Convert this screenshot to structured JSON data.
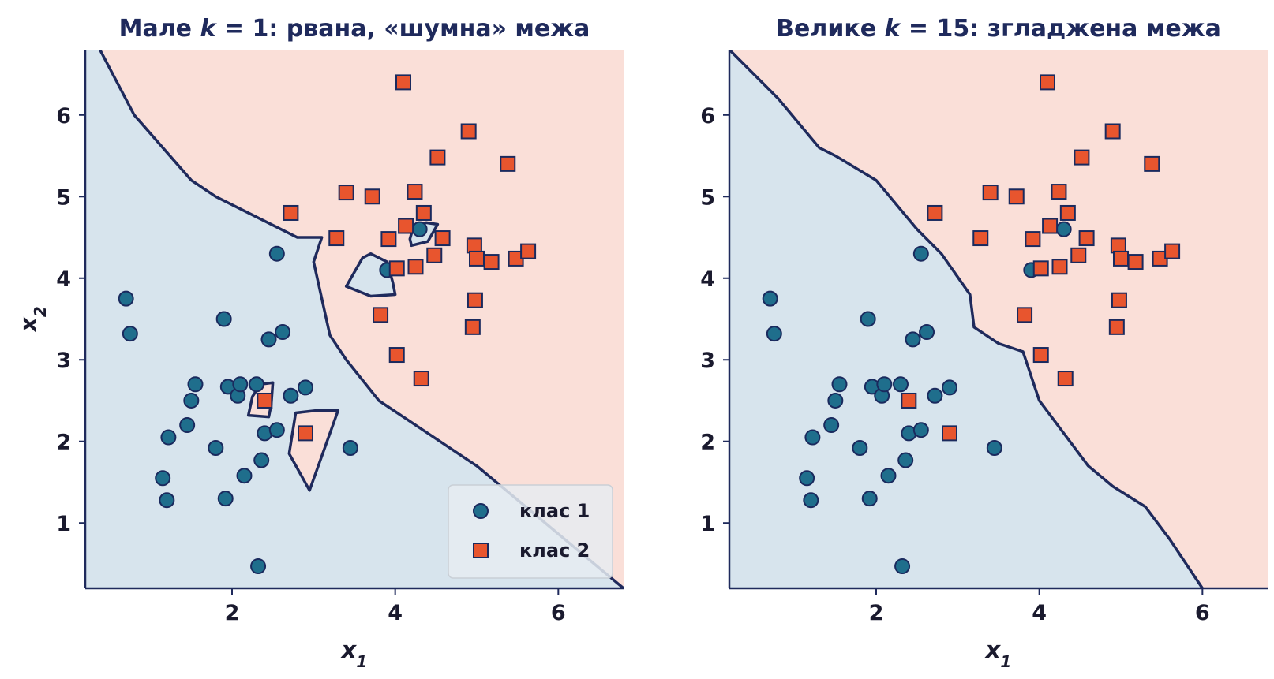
{
  "chart_data": [
    {
      "type": "scatter",
      "title": "Мале k = 1: рвана, «шумна» межа",
      "title_parts": [
        "Мале ",
        "k",
        " = 1: рвана, «шумна» межа"
      ],
      "xlabel": "x1",
      "ylabel": "x2",
      "xlim": [
        0.2,
        6.8
      ],
      "ylim": [
        0.2,
        6.8
      ],
      "xticks": [
        2,
        4,
        6
      ],
      "yticks": [
        1,
        2,
        3,
        4,
        5,
        6
      ],
      "grid": false,
      "legend": {
        "placement": "bottom-right",
        "entries": [
          "клас 1",
          "клас 2"
        ]
      },
      "background_regions": {
        "class1": "#d7e4ed",
        "class2": "#fadfd8"
      },
      "boundary": [
        [
          [
            0.38,
            6.8
          ],
          [
            0.8,
            6.0
          ],
          [
            1.5,
            5.2
          ],
          [
            1.8,
            5.0
          ],
          [
            2.8,
            4.5
          ],
          [
            3.1,
            4.5
          ],
          [
            3.0,
            4.2
          ],
          [
            3.2,
            3.3
          ],
          [
            3.4,
            3.0
          ],
          [
            3.8,
            2.5
          ],
          [
            5.0,
            1.7
          ],
          [
            6.8,
            0.2
          ]
        ],
        [
          [
            3.4,
            3.9
          ],
          [
            3.6,
            4.25
          ],
          [
            3.7,
            4.3
          ],
          [
            3.9,
            4.2
          ],
          [
            3.97,
            3.95
          ],
          [
            4.0,
            3.8
          ],
          [
            3.7,
            3.78
          ],
          [
            3.4,
            3.9
          ]
        ],
        [
          [
            4.18,
            4.48
          ],
          [
            4.22,
            4.62
          ],
          [
            4.38,
            4.68
          ],
          [
            4.52,
            4.66
          ],
          [
            4.4,
            4.45
          ],
          [
            4.2,
            4.4
          ],
          [
            4.18,
            4.48
          ]
        ],
        [
          [
            2.2,
            2.32
          ],
          [
            2.25,
            2.55
          ],
          [
            2.35,
            2.7
          ],
          [
            2.5,
            2.72
          ],
          [
            2.48,
            2.45
          ],
          [
            2.45,
            2.3
          ],
          [
            2.2,
            2.32
          ]
        ],
        [
          [
            2.7,
            1.85
          ],
          [
            2.78,
            2.35
          ],
          [
            3.05,
            2.38
          ],
          [
            3.3,
            2.38
          ],
          [
            2.95,
            1.4
          ],
          [
            2.7,
            1.85
          ]
        ]
      ],
      "series": [
        {
          "name": "клас 1",
          "marker": "circle",
          "color": "#1f6e8c",
          "edgecolor": "#1a2a5e",
          "points": [
            [
              0.7,
              3.75
            ],
            [
              0.75,
              3.32
            ],
            [
              1.15,
              1.55
            ],
            [
              1.2,
              1.28
            ],
            [
              1.22,
              2.05
            ],
            [
              1.45,
              2.2
            ],
            [
              1.5,
              2.5
            ],
            [
              1.55,
              2.7
            ],
            [
              1.8,
              1.92
            ],
            [
              1.9,
              3.5
            ],
            [
              1.92,
              1.3
            ],
            [
              1.95,
              2.67
            ],
            [
              2.07,
              2.56
            ],
            [
              2.1,
              2.7
            ],
            [
              2.15,
              1.58
            ],
            [
              2.3,
              2.7
            ],
            [
              2.32,
              0.47
            ],
            [
              2.36,
              1.77
            ],
            [
              2.4,
              2.1
            ],
            [
              2.45,
              3.25
            ],
            [
              2.55,
              2.14
            ],
            [
              2.55,
              4.3
            ],
            [
              2.62,
              3.34
            ],
            [
              2.72,
              2.56
            ],
            [
              2.9,
              2.66
            ],
            [
              3.45,
              1.92
            ],
            [
              3.9,
              4.1
            ],
            [
              4.3,
              4.6
            ]
          ]
        },
        {
          "name": "клас 2",
          "marker": "square",
          "color": "#e8552e",
          "edgecolor": "#1a2a5e",
          "points": [
            [
              2.4,
              2.5
            ],
            [
              2.72,
              4.8
            ],
            [
              2.9,
              2.1
            ],
            [
              3.28,
              4.49
            ],
            [
              3.4,
              5.05
            ],
            [
              3.72,
              5.0
            ],
            [
              3.82,
              3.55
            ],
            [
              3.92,
              4.48
            ],
            [
              4.02,
              3.06
            ],
            [
              4.02,
              4.12
            ],
            [
              4.1,
              6.4
            ],
            [
              4.13,
              4.64
            ],
            [
              4.24,
              5.06
            ],
            [
              4.25,
              4.14
            ],
            [
              4.32,
              2.77
            ],
            [
              4.35,
              4.8
            ],
            [
              4.48,
              4.28
            ],
            [
              4.52,
              5.48
            ],
            [
              4.58,
              4.49
            ],
            [
              4.9,
              5.8
            ],
            [
              4.95,
              3.4
            ],
            [
              4.97,
              4.4
            ],
            [
              4.98,
              3.73
            ],
            [
              5.0,
              4.24
            ],
            [
              5.18,
              4.2
            ],
            [
              5.38,
              5.4
            ],
            [
              5.48,
              4.24
            ],
            [
              5.63,
              4.33
            ]
          ]
        }
      ]
    },
    {
      "type": "scatter",
      "title": "Велике k = 15: згладжена межа",
      "title_parts": [
        "Велике ",
        "k",
        " = 15: згладжена межа"
      ],
      "xlabel": "x1",
      "ylabel": "",
      "xlim": [
        0.2,
        6.8
      ],
      "ylim": [
        0.2,
        6.8
      ],
      "xticks": [
        2,
        4,
        6
      ],
      "yticks": [
        1,
        2,
        3,
        4,
        5,
        6
      ],
      "grid": false,
      "background_regions": {
        "class1": "#d7e4ed",
        "class2": "#fadfd8"
      },
      "boundary": [
        [
          [
            0.2,
            6.8
          ],
          [
            0.8,
            6.2
          ],
          [
            1.3,
            5.6
          ],
          [
            1.5,
            5.5
          ],
          [
            2.0,
            5.2
          ],
          [
            2.5,
            4.6
          ],
          [
            2.8,
            4.3
          ],
          [
            3.15,
            3.8
          ],
          [
            3.2,
            3.4
          ],
          [
            3.5,
            3.2
          ],
          [
            3.8,
            3.1
          ],
          [
            4.0,
            2.5
          ],
          [
            4.3,
            2.1
          ],
          [
            4.6,
            1.7
          ],
          [
            4.9,
            1.45
          ],
          [
            5.3,
            1.2
          ],
          [
            5.6,
            0.8
          ],
          [
            6.0,
            0.2
          ]
        ]
      ],
      "series": [
        {
          "name": "клас 1",
          "marker": "circle",
          "color": "#1f6e8c",
          "edgecolor": "#1a2a5e",
          "points": [
            [
              0.7,
              3.75
            ],
            [
              0.75,
              3.32
            ],
            [
              1.15,
              1.55
            ],
            [
              1.2,
              1.28
            ],
            [
              1.22,
              2.05
            ],
            [
              1.45,
              2.2
            ],
            [
              1.5,
              2.5
            ],
            [
              1.55,
              2.7
            ],
            [
              1.8,
              1.92
            ],
            [
              1.9,
              3.5
            ],
            [
              1.92,
              1.3
            ],
            [
              1.95,
              2.67
            ],
            [
              2.07,
              2.56
            ],
            [
              2.1,
              2.7
            ],
            [
              2.15,
              1.58
            ],
            [
              2.3,
              2.7
            ],
            [
              2.32,
              0.47
            ],
            [
              2.36,
              1.77
            ],
            [
              2.4,
              2.1
            ],
            [
              2.45,
              3.25
            ],
            [
              2.55,
              2.14
            ],
            [
              2.55,
              4.3
            ],
            [
              2.62,
              3.34
            ],
            [
              2.72,
              2.56
            ],
            [
              2.9,
              2.66
            ],
            [
              3.45,
              1.92
            ],
            [
              3.9,
              4.1
            ],
            [
              4.3,
              4.6
            ]
          ]
        },
        {
          "name": "клас 2",
          "marker": "square",
          "color": "#e8552e",
          "edgecolor": "#1a2a5e",
          "points": [
            [
              2.4,
              2.5
            ],
            [
              2.72,
              4.8
            ],
            [
              2.9,
              2.1
            ],
            [
              3.28,
              4.49
            ],
            [
              3.4,
              5.05
            ],
            [
              3.72,
              5.0
            ],
            [
              3.82,
              3.55
            ],
            [
              3.92,
              4.48
            ],
            [
              4.02,
              3.06
            ],
            [
              4.02,
              4.12
            ],
            [
              4.1,
              6.4
            ],
            [
              4.13,
              4.64
            ],
            [
              4.24,
              5.06
            ],
            [
              4.25,
              4.14
            ],
            [
              4.32,
              2.77
            ],
            [
              4.35,
              4.8
            ],
            [
              4.48,
              4.28
            ],
            [
              4.52,
              5.48
            ],
            [
              4.58,
              4.49
            ],
            [
              4.9,
              5.8
            ],
            [
              4.95,
              3.4
            ],
            [
              4.97,
              4.4
            ],
            [
              4.98,
              3.73
            ],
            [
              5.0,
              4.24
            ],
            [
              5.18,
              4.2
            ],
            [
              5.38,
              5.4
            ],
            [
              5.48,
              4.24
            ],
            [
              5.63,
              4.33
            ]
          ]
        }
      ]
    }
  ]
}
